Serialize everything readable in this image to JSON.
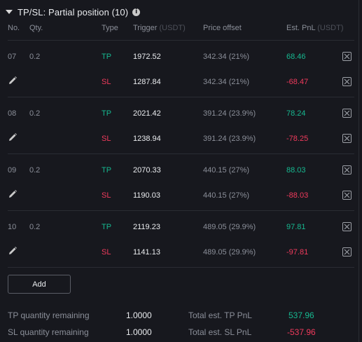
{
  "header": {
    "title": "TP/SL: Partial position (10)",
    "info_icon": "info-circle-icon"
  },
  "columns": {
    "no": "No.",
    "qty": "Qty.",
    "type": "Type",
    "trigger": "Trigger",
    "trigger_unit": "(USDT)",
    "offset": "Price offset",
    "pnl": "Est. PnL",
    "pnl_unit": "(USDT)"
  },
  "orders": [
    {
      "no": "07",
      "qty": "0.2",
      "tp": {
        "type": "TP",
        "trigger": "1972.52",
        "offset": "342.34 (21%)",
        "pnl": "68.46"
      },
      "sl": {
        "type": "SL",
        "trigger": "1287.84",
        "offset": "342.34 (21%)",
        "pnl": "-68.47"
      }
    },
    {
      "no": "08",
      "qty": "0.2",
      "tp": {
        "type": "TP",
        "trigger": "2021.42",
        "offset": "391.24 (23.9%)",
        "pnl": "78.24"
      },
      "sl": {
        "type": "SL",
        "trigger": "1238.94",
        "offset": "391.24 (23.9%)",
        "pnl": "-78.25"
      }
    },
    {
      "no": "09",
      "qty": "0.2",
      "tp": {
        "type": "TP",
        "trigger": "2070.33",
        "offset": "440.15 (27%)",
        "pnl": "88.03"
      },
      "sl": {
        "type": "SL",
        "trigger": "1190.03",
        "offset": "440.15 (27%)",
        "pnl": "-88.03"
      }
    },
    {
      "no": "10",
      "qty": "0.2",
      "tp": {
        "type": "TP",
        "trigger": "2119.23",
        "offset": "489.05 (29.9%)",
        "pnl": "97.81"
      },
      "sl": {
        "type": "SL",
        "trigger": "1141.13",
        "offset": "489.05 (29.9%)",
        "pnl": "-97.81"
      }
    }
  ],
  "icons": {
    "edit": "pencil-icon",
    "remove": "close-box-icon"
  },
  "add_button": "Add",
  "summary": {
    "tp_qty_label": "TP quantity remaining",
    "tp_qty_value": "1.0000",
    "sl_qty_label": "SL quantity remaining",
    "sl_qty_value": "1.0000",
    "tp_pnl_label": "Total est. TP PnL",
    "tp_pnl_value": "537.96",
    "sl_pnl_label": "Total est. SL PnL",
    "sl_pnl_value": "-537.96"
  },
  "colors": {
    "background": "#17181e",
    "profit": "#17b890",
    "loss": "#f03a5c",
    "muted": "#8b8f99"
  }
}
